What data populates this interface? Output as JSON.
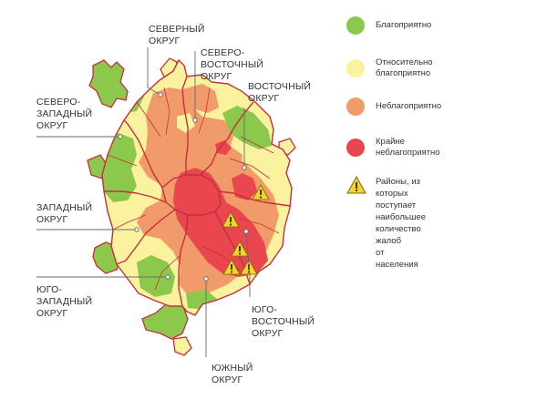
{
  "map": {
    "districts": [
      {
        "id": "north",
        "lines": [
          "СЕВЕРНЫЙ",
          "ОКРУГ"
        ]
      },
      {
        "id": "north-east",
        "lines": [
          "СЕВЕРО-",
          "ВОСТОЧНЫЙ",
          "ОКРУГ"
        ]
      },
      {
        "id": "east",
        "lines": [
          "ВОСТОЧНЫЙ",
          "ОКРУГ"
        ]
      },
      {
        "id": "north-west",
        "lines": [
          "СЕВЕРО-",
          "ЗАПАДНЫЙ",
          "ОКРУГ"
        ]
      },
      {
        "id": "west",
        "lines": [
          "ЗАПАДНЫЙ",
          "ОКРУГ"
        ]
      },
      {
        "id": "south-west",
        "lines": [
          "ЮГО-",
          "ЗАПАДНЫЙ",
          "ОКРУГ"
        ]
      },
      {
        "id": "south-east",
        "lines": [
          "ЮГО-",
          "ВОСТОЧНЫЙ",
          "ОКРУГ"
        ]
      },
      {
        "id": "south",
        "lines": [
          "ЮЖНЫЙ",
          "ОКРУГ"
        ]
      }
    ]
  },
  "legend": {
    "items": [
      {
        "label": "Благоприятно",
        "color": "#8cc84b"
      },
      {
        "label": "Относительно благоприятно",
        "color": "#fbf2a0"
      },
      {
        "label": "Неблагоприятно",
        "color": "#f19a6a"
      },
      {
        "label": "Крайне неблагоприятно",
        "color": "#e9464f"
      }
    ],
    "complaints": {
      "lines": [
        "Районы, из которых поступает",
        "наибольшее количество жалоб",
        "от населения"
      ],
      "color": "#f5d327",
      "icon": "warning-icon"
    }
  },
  "colors": {
    "border": "#c2303c",
    "leader": "#6a6a6a",
    "text": "#333333"
  }
}
